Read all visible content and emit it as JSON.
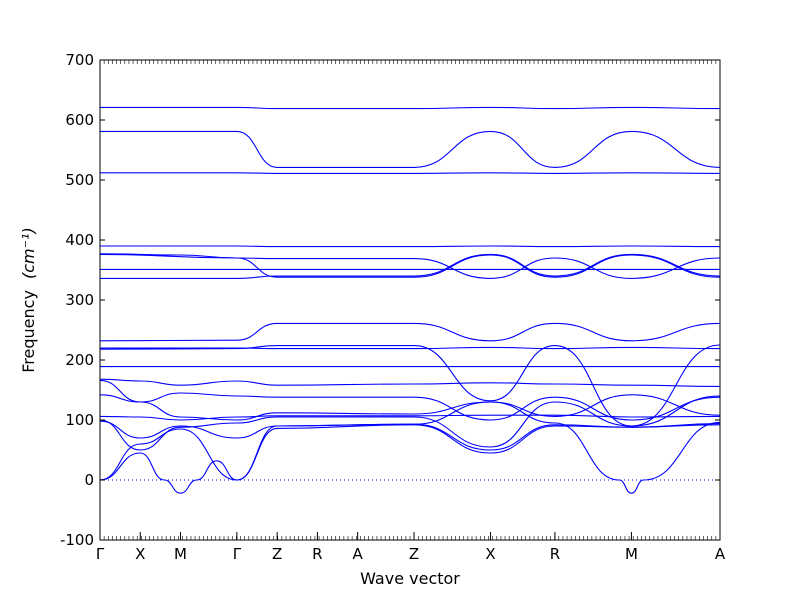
{
  "chart_data": {
    "type": "line",
    "xlabel": "Wave vector",
    "ylabel": "Frequency",
    "ylabel_unit": "(cm⁻¹)",
    "ylim": [
      -100,
      700
    ],
    "yticks": [
      -100,
      0,
      100,
      200,
      300,
      400,
      500,
      600,
      700
    ],
    "xticks": [
      {
        "label": "Γ",
        "pos": 0
      },
      {
        "label": "X",
        "pos": 1
      },
      {
        "label": "M",
        "pos": 2
      },
      {
        "label": "Γ",
        "pos": 3.4
      },
      {
        "label": "Z",
        "pos": 4.4
      },
      {
        "label": "R",
        "pos": 5.4
      },
      {
        "label": "A",
        "pos": 6.4
      },
      {
        "label": "Z",
        "pos": 7.8
      },
      {
        "label": "X",
        "pos": 9.7
      },
      {
        "label": "R",
        "pos": 11.3
      },
      {
        "label": "M",
        "pos": 13.2
      },
      {
        "label": "A",
        "pos": 15.4
      }
    ],
    "zero_reference": 0,
    "series_color": "#0000ff",
    "series": [
      {
        "x": [
          0,
          3.4,
          4.4,
          7.8,
          9.7,
          11.3,
          13.2,
          15.4
        ],
        "y": [
          621,
          621,
          619,
          619,
          621,
          619,
          621,
          619
        ]
      },
      {
        "x": [
          0,
          3.4,
          4.4,
          6.4,
          7.8,
          9.7,
          11.3,
          13.2,
          15.4
        ],
        "y": [
          581,
          581,
          521,
          521,
          521,
          581,
          521,
          581,
          521
        ]
      },
      {
        "x": [
          0,
          3.4,
          4.4,
          7.8,
          9.7,
          11.3,
          13.2,
          15.4
        ],
        "y": [
          512,
          512,
          511,
          511,
          512,
          511,
          512,
          511
        ]
      },
      {
        "x": [
          0,
          3.4,
          4.4,
          7.8,
          9.7,
          11.3,
          13.2,
          15.4
        ],
        "y": [
          390,
          390,
          389,
          389,
          390,
          389,
          390,
          389
        ]
      },
      {
        "x": [
          0,
          2,
          3.4,
          4.4,
          7.8,
          9.7,
          11.3,
          13.2,
          15.4
        ],
        "y": [
          377,
          375,
          370,
          338,
          338,
          375,
          338,
          375,
          338
        ]
      },
      {
        "x": [
          0,
          3.4,
          4.4,
          7.8,
          9.7,
          11.3,
          13.2,
          15.4
        ],
        "y": [
          376,
          370,
          369,
          369,
          336,
          370,
          336,
          370
        ]
      },
      {
        "x": [
          0,
          3.4,
          4.4,
          7.8,
          9.7,
          11.3,
          13.2,
          15.4
        ],
        "y": [
          351,
          351,
          351,
          351,
          351,
          351,
          351,
          351
        ]
      },
      {
        "x": [
          0,
          3.4,
          4.4,
          7.8,
          9.7,
          11.3,
          13.2,
          15.4
        ],
        "y": [
          336,
          336,
          340,
          340,
          376,
          340,
          376,
          340
        ]
      },
      {
        "x": [
          0,
          3.4,
          4.4,
          7.8,
          9.7,
          11.3,
          13.2,
          15.4
        ],
        "y": [
          232,
          233,
          261,
          261,
          232,
          261,
          232,
          261
        ]
      },
      {
        "x": [
          0,
          3.4,
          4.4,
          7.8,
          9.7,
          11.3,
          13.2,
          15.4
        ],
        "y": [
          220,
          220,
          219,
          219,
          221,
          219,
          221,
          219
        ]
      },
      {
        "x": [
          0,
          3.4,
          4.4,
          7.8,
          9.7,
          11.3,
          13.2,
          15.4
        ],
        "y": [
          218,
          219,
          224,
          224,
          132,
          224,
          90,
          225
        ]
      },
      {
        "x": [
          0,
          3.4,
          4.4,
          7.8,
          9.7,
          11.3,
          13.2,
          15.4
        ],
        "y": [
          189,
          189,
          189,
          189,
          189,
          189,
          189,
          189
        ]
      },
      {
        "x": [
          0,
          1,
          2,
          3.4,
          4.4,
          7.8,
          9.7,
          11.3,
          13.2,
          15.4
        ],
        "y": [
          168,
          165,
          158,
          165,
          158,
          160,
          162,
          160,
          158,
          156
        ]
      },
      {
        "x": [
          0,
          1,
          2,
          3.4,
          4.4,
          7.8,
          9.7,
          11.3,
          13.2,
          15.4
        ],
        "y": [
          166,
          130,
          145,
          140,
          138,
          138,
          100,
          138,
          100,
          138
        ]
      },
      {
        "x": [
          0,
          1,
          2,
          3.4,
          4.4,
          7.8,
          9.7,
          11.3,
          13.2,
          15.4
        ],
        "y": [
          142,
          130,
          105,
          100,
          112,
          110,
          130,
          106,
          142,
          108
        ]
      },
      {
        "x": [
          0,
          1,
          2,
          3.4,
          4.4,
          7.8,
          9.7,
          11.3,
          13.2,
          15.4
        ],
        "y": [
          106,
          105,
          100,
          105,
          107,
          107,
          108,
          108,
          105,
          106
        ]
      },
      {
        "x": [
          0,
          1,
          2,
          3.4,
          4.4,
          7.8,
          9.7,
          11.3,
          13.2,
          15.4
        ],
        "y": [
          100,
          50,
          88,
          95,
          105,
          105,
          55,
          130,
          90,
          140
        ]
      },
      {
        "x": [
          0,
          1,
          2,
          3.4,
          4.4,
          7.8,
          9.7,
          11.3,
          13.2,
          15.4
        ],
        "y": [
          98,
          70,
          90,
          70,
          90,
          93,
          50,
          92,
          88,
          94
        ]
      },
      {
        "x": [
          0,
          1,
          2,
          3.4,
          4.4,
          7.8,
          9.7,
          11.3,
          13.2,
          15.4
        ],
        "y": [
          0,
          60,
          85,
          0,
          86,
          92,
          45,
          90,
          88,
          92
        ]
      },
      {
        "x": [
          0,
          1,
          1.6,
          2,
          2.4,
          2.9,
          3.4,
          4.4,
          7.8,
          9.7,
          11.3,
          12.9,
          13.2,
          13.5,
          15.4
        ],
        "y": [
          0,
          45,
          0,
          -22,
          0,
          32,
          0,
          90,
          93,
          130,
          95,
          0,
          -22,
          0,
          96
        ]
      }
    ]
  }
}
